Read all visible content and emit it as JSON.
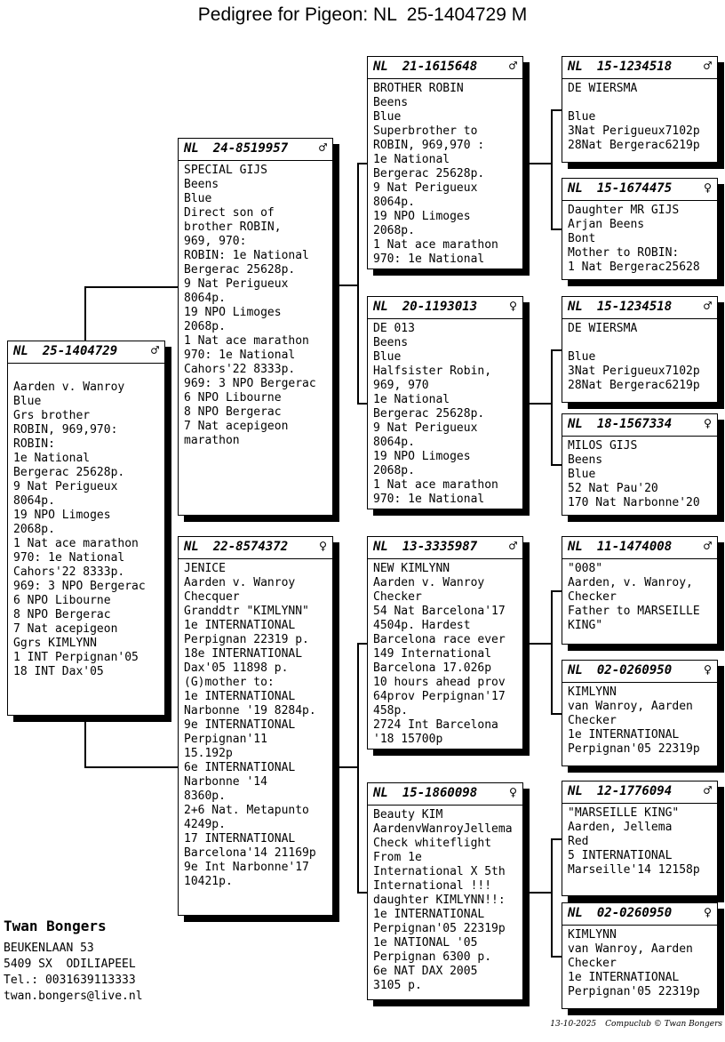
{
  "title": "Pedigree for Pigeon: NL  25-1404729 M",
  "footer": {
    "date": "13-10-2025",
    "credit": "Compuclub © Twan Bongers"
  },
  "owner": {
    "name": "Twan Bongers",
    "address_line1": "BEUKENLAAN 53",
    "address_line2": "5409 SX  ODILIAPEEL",
    "phone": "Tel.: 0031639113333",
    "email": "twan.bongers@live.nl"
  },
  "boxes": [
    {
      "role": "subject",
      "country": "NL",
      "band": "25-1404729",
      "sex": "male",
      "sex_symbol": "♂",
      "lines": [
        "",
        "Aarden v. Wanroy",
        "Blue",
        "Grs brother",
        "ROBIN, 969,970:",
        "ROBIN:",
        "1e National",
        "Bergerac 25628p.",
        "9 Nat Perigueux",
        "8064p.",
        "19 NPO Limoges",
        "2068p.",
        "1 Nat ace marathon",
        "970: 1e National",
        "Cahors'22 8333p.",
        "969: 3 NPO Bergerac",
        "6 NPO Libourne",
        "8 NPO Bergerac",
        "7 Nat acepigeon",
        "Ggrs KIMLYNN",
        "1 INT Perpignan'05",
        "18 INT Dax'05"
      ]
    },
    {
      "role": "father",
      "country": "NL",
      "band": "24-8519957",
      "sex": "male",
      "sex_symbol": "♂",
      "lines": [
        "SPECIAL GIJS",
        "Beens",
        "Blue",
        "Direct son of",
        "brother ROBIN,",
        "969, 970:",
        "ROBIN: 1e National",
        "Bergerac 25628p.",
        "9 Nat Perigueux",
        "8064p.",
        "19 NPO Limoges",
        "2068p.",
        "1 Nat ace marathon",
        "970: 1e National",
        "Cahors'22 8333p.",
        "969: 3 NPO Bergerac",
        "6 NPO Libourne",
        "8 NPO Bergerac",
        "7 Nat acepigeon",
        "marathon"
      ]
    },
    {
      "role": "mother",
      "country": "NL",
      "band": "22-8574372",
      "sex": "female",
      "sex_symbol": "♀",
      "lines": [
        "JENICE",
        "Aarden v. Wanroy",
        "Checquer",
        "Granddtr \"KIMLYNN\"",
        "1e INTERNATIONAL",
        "Perpignan 22319 p.",
        "18e INTERNATIONAL",
        "Dax'05 11898 p.",
        "(G)mother to:",
        "1e INTERNATIONAL",
        "Narbonne '19 8284p.",
        "9e INTERNATIONAL",
        "Perpignan'11",
        "15.192p",
        "6e INTERNATIONAL",
        "Narbonne '14",
        "8360p.",
        "2+6 Nat. Metapunto",
        "4249p.",
        "17 INTERNATIONAL",
        "Barcelona'14 21169p",
        "9e Int Narbonne'17",
        "10421p."
      ]
    },
    {
      "role": "paternal-grandfather",
      "country": "NL",
      "band": "21-1615648",
      "sex": "male",
      "sex_symbol": "♂",
      "lines": [
        "BROTHER ROBIN",
        "Beens",
        "Blue",
        "Superbrother to",
        "ROBIN, 969,970 :",
        "1e National",
        "Bergerac 25628p.",
        "9 Nat Perigueux",
        "8064p.",
        "19 NPO Limoges",
        "2068p.",
        "1 Nat ace marathon",
        "970: 1e National"
      ]
    },
    {
      "role": "paternal-grandmother",
      "country": "NL",
      "band": "20-1193013",
      "sex": "female",
      "sex_symbol": "♀",
      "lines": [
        "DE 013",
        "Beens",
        "Blue",
        "Halfsister Robin,",
        "969, 970",
        "1e National",
        "Bergerac 25628p.",
        "9 Nat Perigueux",
        "8064p.",
        "19 NPO Limoges",
        "2068p.",
        "1 Nat ace marathon",
        "970: 1e National"
      ]
    },
    {
      "role": "maternal-grandfather",
      "country": "NL",
      "band": "13-3335987",
      "sex": "male",
      "sex_symbol": "♂",
      "lines": [
        "NEW KIMLYNN",
        "Aarden v. Wanroy",
        "Checker",
        "54 Nat Barcelona'17",
        "4504p. Hardest",
        "Barcelona race ever",
        "149 International",
        "Barcelona 17.026p",
        "10 hours ahead prov",
        "64prov Perpignan'17",
        "458p.",
        "2724 Int Barcelona",
        "'18 15700p"
      ]
    },
    {
      "role": "maternal-grandmother",
      "country": "NL",
      "band": "15-1860098",
      "sex": "female",
      "sex_symbol": "♀",
      "lines": [
        "Beauty KIM",
        "AardenvWanroyJellema",
        "Check whiteflight",
        "From 1e",
        "International X 5th",
        "International !!!",
        "daughter KIMLYNN!!:",
        "1e INTERNATIONAL",
        "Perpignan'05 22319p",
        "1e NATIONAL '05",
        "Perpignan 6300 p.",
        "6e NAT DAX 2005",
        "3105 p."
      ]
    },
    {
      "role": "great-grandfather-1",
      "country": "NL",
      "band": "15-1234518",
      "sex": "male",
      "sex_symbol": "♂",
      "lines": [
        "DE WIERSMA",
        "",
        "Blue",
        "3Nat Perigueux7102p",
        "28Nat Bergerac6219p"
      ]
    },
    {
      "role": "great-grandmother-1",
      "country": "NL",
      "band": "15-1674475",
      "sex": "female",
      "sex_symbol": "♀",
      "lines": [
        "Daughter MR GIJS",
        "Arjan Beens",
        "Bont",
        "Mother to ROBIN:",
        "1 Nat Bergerac25628"
      ]
    },
    {
      "role": "great-grandfather-2",
      "country": "NL",
      "band": "15-1234518",
      "sex": "male",
      "sex_symbol": "♂",
      "lines": [
        "DE WIERSMA",
        "",
        "Blue",
        "3Nat Perigueux7102p",
        "28Nat Bergerac6219p"
      ]
    },
    {
      "role": "great-grandmother-2",
      "country": "NL",
      "band": "18-1567334",
      "sex": "female",
      "sex_symbol": "♀",
      "lines": [
        "MILOS GIJS",
        "Beens",
        "Blue",
        "52 Nat Pau'20",
        "170 Nat Narbonne'20"
      ]
    },
    {
      "role": "great-grandfather-3",
      "country": "NL",
      "band": "11-1474008",
      "sex": "male",
      "sex_symbol": "♂",
      "lines": [
        "\"008\"",
        "Aarden, v. Wanroy,",
        "Checker",
        "Father to MARSEILLE",
        "KING\""
      ]
    },
    {
      "role": "great-grandmother-3",
      "country": "NL",
      "band": "02-0260950",
      "sex": "female",
      "sex_symbol": "♀",
      "lines": [
        "KIMLYNN",
        "van Wanroy, Aarden",
        "Checker",
        "1e INTERNATIONAL",
        "Perpignan'05 22319p"
      ]
    },
    {
      "role": "great-grandfather-4",
      "country": "NL",
      "band": "12-1776094",
      "sex": "male",
      "sex_symbol": "♂",
      "lines": [
        "\"MARSEILLE KING\"",
        "Aarden, Jellema",
        "Red",
        "5 INTERNATIONAL",
        "Marseille'14 12158p"
      ]
    },
    {
      "role": "great-grandmother-4",
      "country": "NL",
      "band": "02-0260950",
      "sex": "female",
      "sex_symbol": "♀",
      "lines": [
        "KIMLYNN",
        "van Wanroy, Aarden",
        "Checker",
        "1e INTERNATIONAL",
        "Perpignan'05 22319p"
      ]
    }
  ]
}
